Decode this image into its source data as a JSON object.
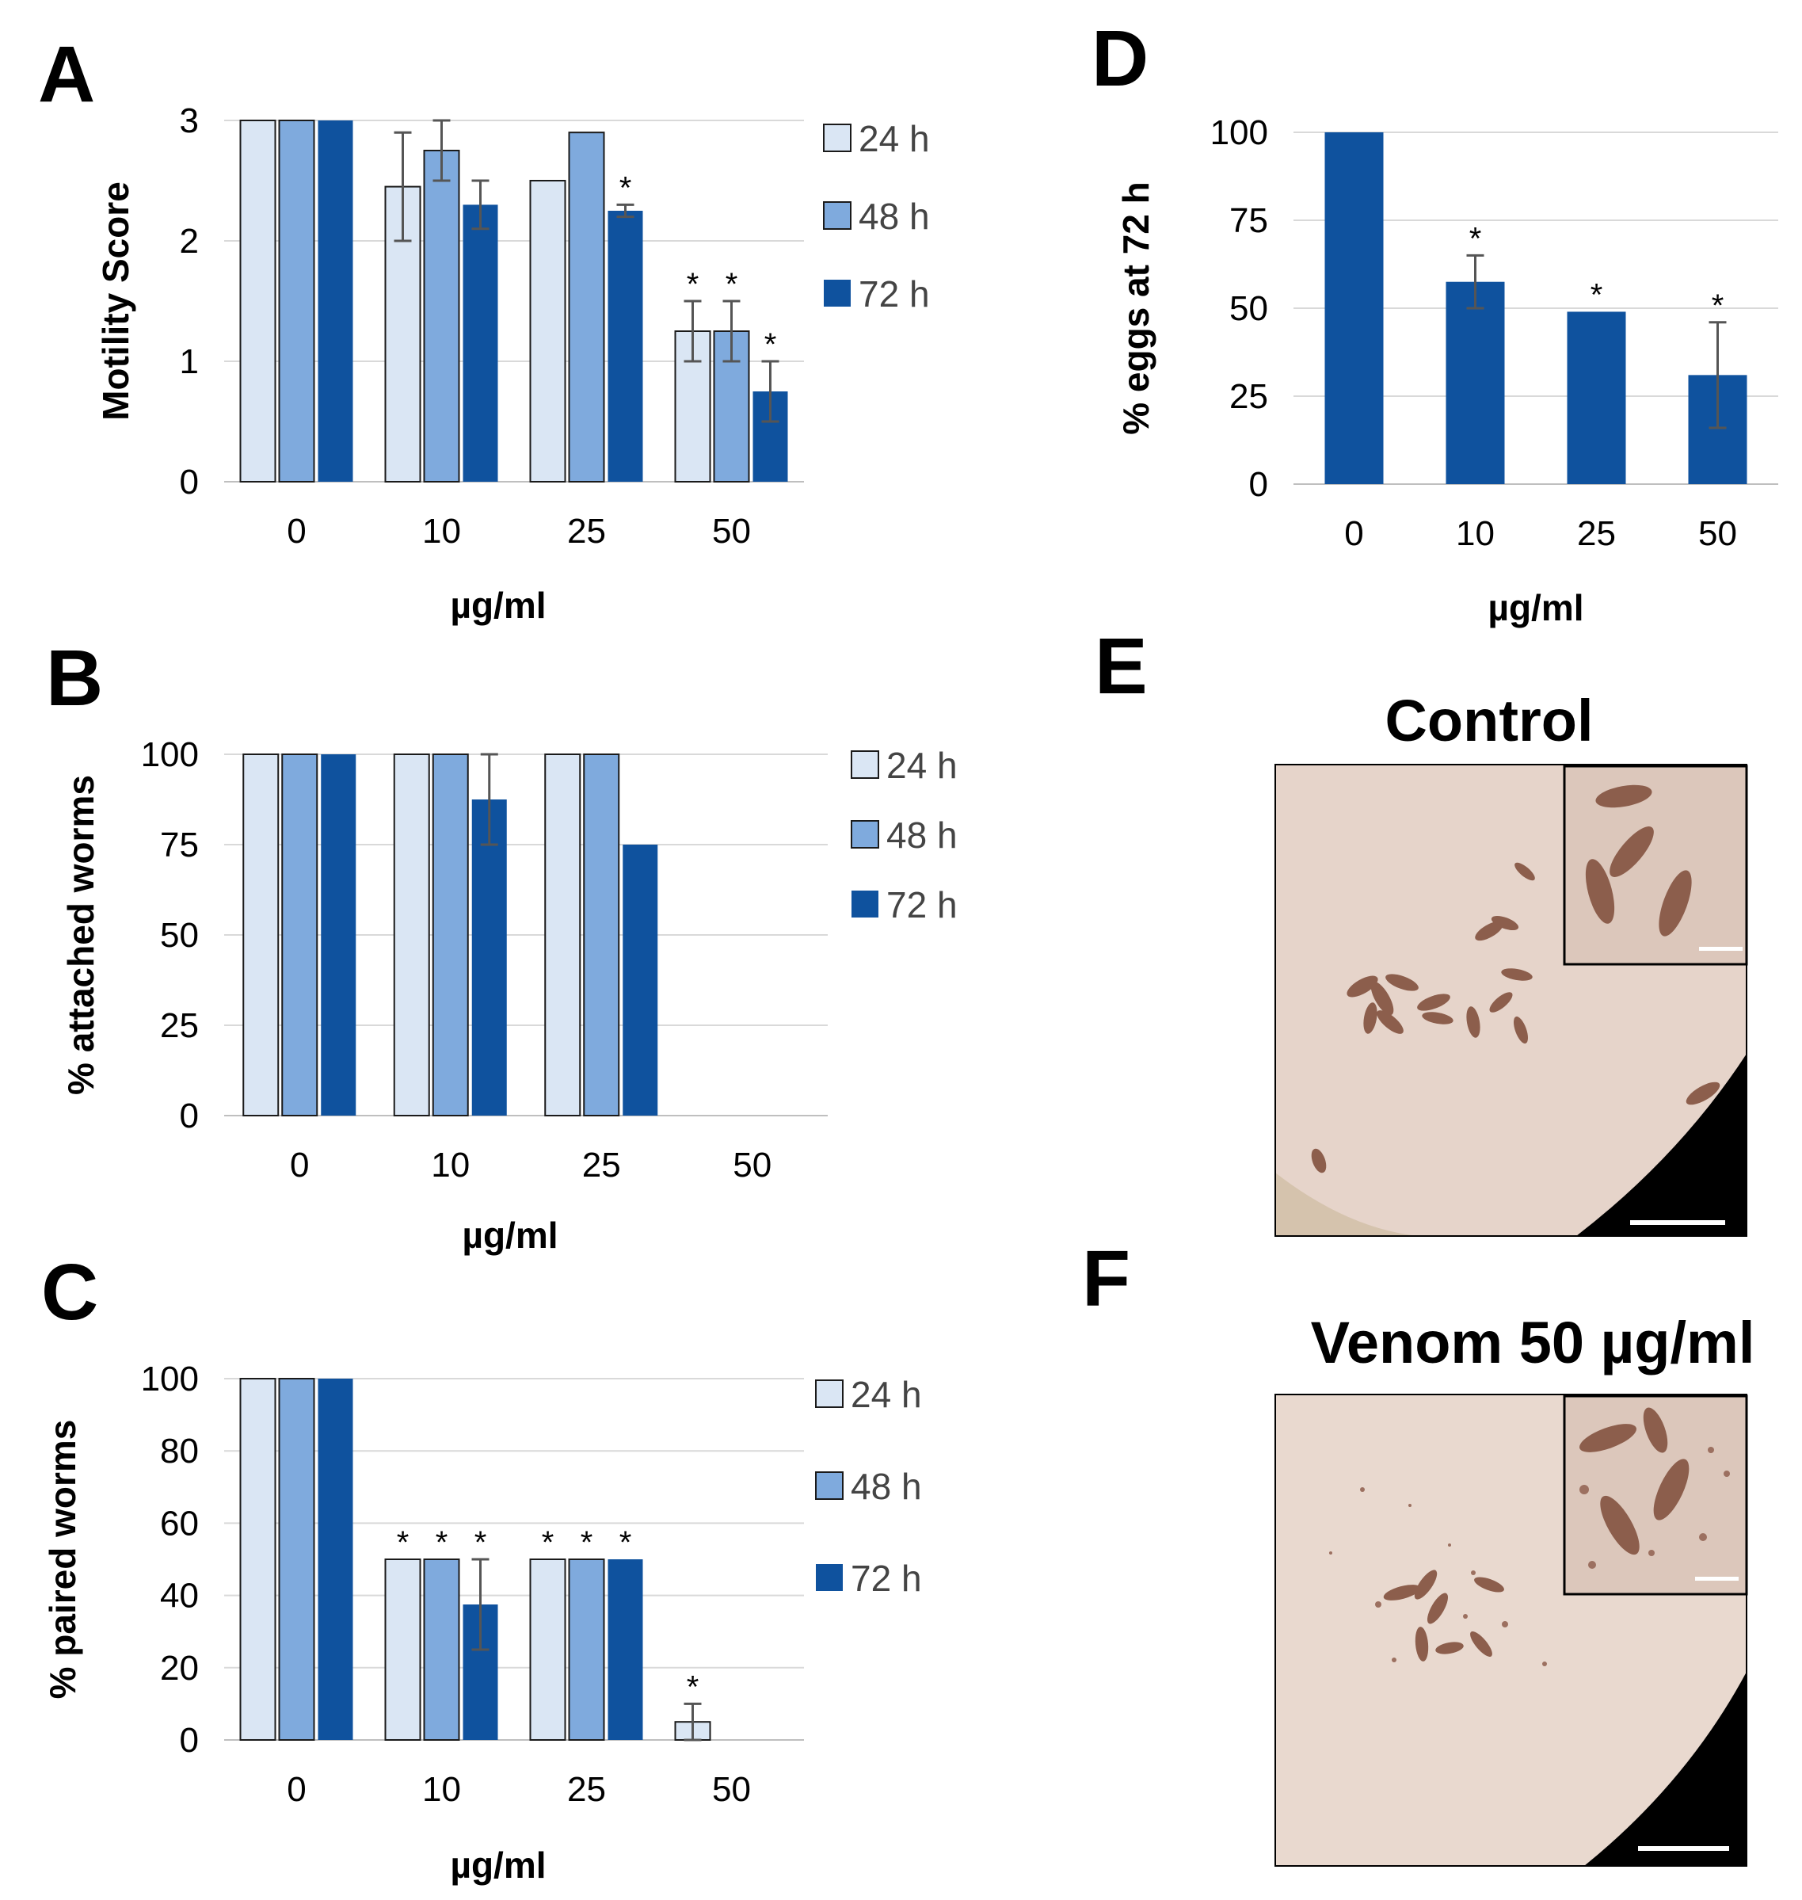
{
  "panels": {
    "A": "A",
    "B": "B",
    "C": "C",
    "D": "D",
    "E": "E",
    "F": "F"
  },
  "colors": {
    "h24": "#dae6f4",
    "h48": "#7faadd",
    "h72": "#0f529e",
    "photo_bg": "#e3cfc4",
    "worm": "#8c5e4c"
  },
  "chart_data": [
    {
      "id": "A",
      "type": "bar",
      "categories": [
        "0",
        "10",
        "25",
        "50"
      ],
      "xlabel": "µg/ml",
      "ylabel": "Motility Score",
      "ylim": [
        0,
        3
      ],
      "yticks": [
        "0",
        "1",
        "2",
        "3"
      ],
      "grid": true,
      "legend": "right",
      "series": [
        {
          "name": "24 h",
          "values": [
            3,
            2.45,
            2.5,
            1.25
          ],
          "errors": [
            0,
            0.45,
            0,
            0.25
          ],
          "stars": [
            false,
            false,
            false,
            true
          ]
        },
        {
          "name": "48 h",
          "values": [
            3,
            2.75,
            2.9,
            1.25
          ],
          "errors": [
            0,
            0.25,
            0,
            0.25
          ],
          "stars": [
            false,
            false,
            false,
            true
          ]
        },
        {
          "name": "72 h",
          "values": [
            3,
            2.3,
            2.25,
            0.75
          ],
          "errors": [
            0,
            0.2,
            0.05,
            0.25
          ],
          "stars": [
            false,
            false,
            true,
            true
          ]
        }
      ]
    },
    {
      "id": "B",
      "type": "bar",
      "categories": [
        "0",
        "10",
        "25",
        "50"
      ],
      "xlabel": "µg/ml",
      "ylabel": "% attached worms",
      "ylim": [
        0,
        100
      ],
      "yticks": [
        "0",
        "25",
        "50",
        "75",
        "100"
      ],
      "grid": true,
      "legend": "right",
      "series": [
        {
          "name": "24 h",
          "values": [
            100,
            100,
            100,
            0
          ],
          "errors": [
            0,
            0,
            0,
            0
          ],
          "stars": [
            false,
            false,
            false,
            false
          ]
        },
        {
          "name": "48 h",
          "values": [
            100,
            100,
            100,
            0
          ],
          "errors": [
            0,
            0,
            0,
            0
          ],
          "stars": [
            false,
            false,
            false,
            false
          ]
        },
        {
          "name": "72 h",
          "values": [
            100,
            87.5,
            75,
            0
          ],
          "errors": [
            0,
            12.5,
            0,
            0
          ],
          "stars": [
            false,
            false,
            false,
            false
          ]
        }
      ]
    },
    {
      "id": "C",
      "type": "bar",
      "categories": [
        "0",
        "10",
        "25",
        "50"
      ],
      "xlabel": "µg/ml",
      "ylabel": "% paired worms",
      "ylim": [
        0,
        100
      ],
      "yticks": [
        "0",
        "20",
        "40",
        "60",
        "80",
        "100"
      ],
      "grid": true,
      "legend": "right",
      "series": [
        {
          "name": "24 h",
          "values": [
            100,
            50,
            50,
            5
          ],
          "errors": [
            0,
            0,
            0,
            5
          ],
          "stars": [
            false,
            true,
            true,
            true
          ]
        },
        {
          "name": "48 h",
          "values": [
            100,
            50,
            50,
            0
          ],
          "errors": [
            0,
            0,
            0,
            0
          ],
          "stars": [
            false,
            true,
            true,
            false
          ]
        },
        {
          "name": "72 h",
          "values": [
            100,
            37.5,
            50,
            0
          ],
          "errors": [
            0,
            12.5,
            0,
            0
          ],
          "stars": [
            false,
            true,
            true,
            false
          ]
        }
      ]
    },
    {
      "id": "D",
      "type": "bar",
      "categories": [
        "0",
        "10",
        "25",
        "50"
      ],
      "xlabel": "µg/ml",
      "ylabel": "% eggs at 72 h",
      "ylim": [
        0,
        100
      ],
      "yticks": [
        "0",
        "25",
        "50",
        "75",
        "100"
      ],
      "grid": true,
      "legend": "none",
      "series": [
        {
          "name": "72 h",
          "values": [
            100,
            57.5,
            49,
            31
          ],
          "errors": [
            0,
            7.5,
            0,
            15
          ],
          "stars": [
            false,
            true,
            true,
            true
          ]
        }
      ]
    }
  ],
  "photos": {
    "E": {
      "title": "Control"
    },
    "F": {
      "title": "Venom 50 µg/ml"
    }
  }
}
